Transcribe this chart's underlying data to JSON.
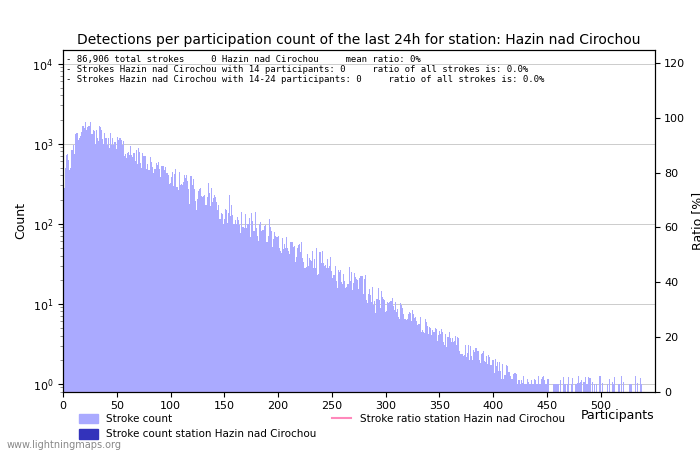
{
  "title": "Detections per participation count of the last 24h for station: Hazin nad Cirochou",
  "xlabel": "Participants",
  "ylabel_left": "Count",
  "ylabel_right": "Ratio [%]",
  "annotation_lines": [
    "86,906 total strokes     0 Hazin nad Cirochou     mean ratio: 0%",
    "Strokes Hazin nad Cirochou with 14 participants: 0     ratio of all strokes is: 0.0%",
    "Strokes Hazin nad Cirochou with 14-24 participants: 0     ratio of all strokes is: 0.0%"
  ],
  "bar_color_light": "#aaaaff",
  "bar_color_dark": "#3333bb",
  "line_color": "#ff88bb",
  "bg_color": "#ffffff",
  "xlim": [
    0,
    550
  ],
  "ylim_right": [
    0,
    125
  ],
  "yticks_right": [
    0,
    20,
    40,
    60,
    80,
    100,
    120
  ],
  "title_fontsize": 10,
  "legend_labels": [
    "Stroke count",
    "Stroke count station Hazin nad Cirochou",
    "Stroke ratio station Hazin nad Cirochou"
  ],
  "watermark": "www.lightningmaps.org",
  "num_bars": 540,
  "xticks": [
    0,
    50,
    100,
    150,
    200,
    250,
    300,
    350,
    400,
    450,
    500
  ]
}
